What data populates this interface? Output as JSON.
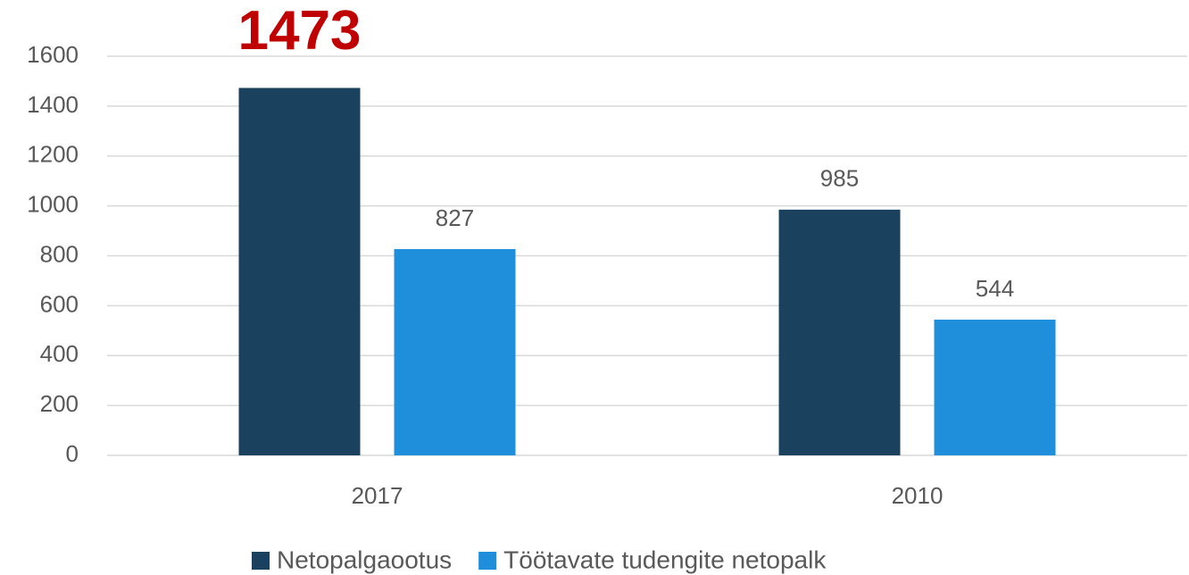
{
  "chart_data": {
    "type": "bar",
    "categories": [
      "2017",
      "2010"
    ],
    "series": [
      {
        "name": "Netopalgaootus",
        "color": "#1a425e",
        "values": [
          1473,
          985
        ]
      },
      {
        "name": "Töötavate tudengite netopalk",
        "color": "#1f8fdb",
        "values": [
          827,
          544
        ]
      }
    ],
    "ylim": [
      0,
      1600
    ],
    "yticks": [
      0,
      200,
      400,
      600,
      800,
      1000,
      1200,
      1400,
      1600
    ],
    "grid": true
  }
}
